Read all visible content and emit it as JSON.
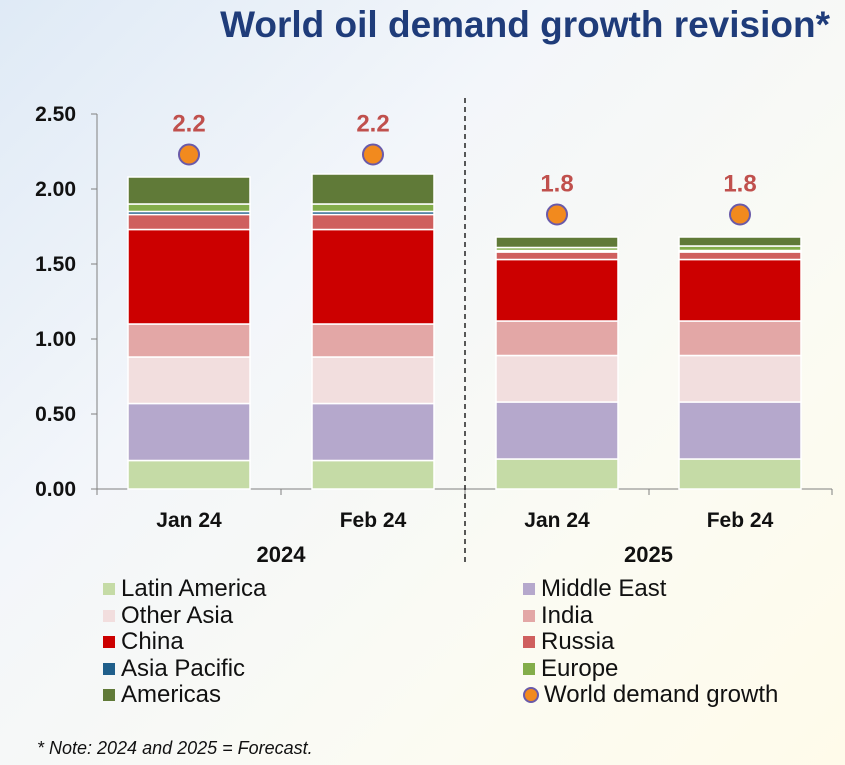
{
  "chart_data": {
    "type": "bar",
    "stacked": true,
    "title": "World oil demand growth revision*",
    "categories": [
      "Jan 24",
      "Feb 24",
      "Jan 24",
      "Feb 24"
    ],
    "groups": [
      {
        "label": "2024",
        "categories": [
          0,
          1
        ]
      },
      {
        "label": "2025",
        "categories": [
          2,
          3
        ]
      }
    ],
    "ylim": [
      0,
      2.5
    ],
    "yticks": [
      "0.00",
      "0.50",
      "1.00",
      "1.50",
      "2.00",
      "2.50"
    ],
    "ytick_values": [
      0,
      0.5,
      1.0,
      1.5,
      2.0,
      2.5
    ],
    "series": [
      {
        "name": "Latin America",
        "color": "#c5dba6",
        "values": [
          0.19,
          0.19,
          0.2,
          0.2
        ]
      },
      {
        "name": "Middle East",
        "color": "#b5a8cc",
        "values": [
          0.38,
          0.38,
          0.38,
          0.38
        ]
      },
      {
        "name": "Other Asia",
        "color": "#f2dede",
        "values": [
          0.31,
          0.31,
          0.31,
          0.31
        ]
      },
      {
        "name": "India",
        "color": "#e3a7a6",
        "values": [
          0.22,
          0.22,
          0.23,
          0.23
        ]
      },
      {
        "name": "China",
        "color": "#cc0000",
        "values": [
          0.63,
          0.63,
          0.41,
          0.41
        ]
      },
      {
        "name": "Russia",
        "color": "#cf5f5e",
        "values": [
          0.1,
          0.1,
          0.05,
          0.05
        ]
      },
      {
        "name": "Asia Pacific",
        "color": "#1f5f8b",
        "values": [
          0.02,
          0.02,
          0.01,
          0.01
        ]
      },
      {
        "name": "Europe",
        "color": "#83ad4a",
        "values": [
          0.05,
          0.05,
          0.02,
          0.03
        ]
      },
      {
        "name": "Americas",
        "color": "#607a38",
        "values": [
          0.18,
          0.2,
          0.07,
          0.06
        ]
      }
    ],
    "world_demand_growth": {
      "name": "World demand growth",
      "values": [
        2.25,
        2.25,
        1.85,
        1.85
      ],
      "labels": [
        "2.2",
        "2.2",
        "1.8",
        "1.8"
      ],
      "color": "#f28a1e"
    },
    "note": "* Note: 2024 and 2025 = Forecast."
  }
}
